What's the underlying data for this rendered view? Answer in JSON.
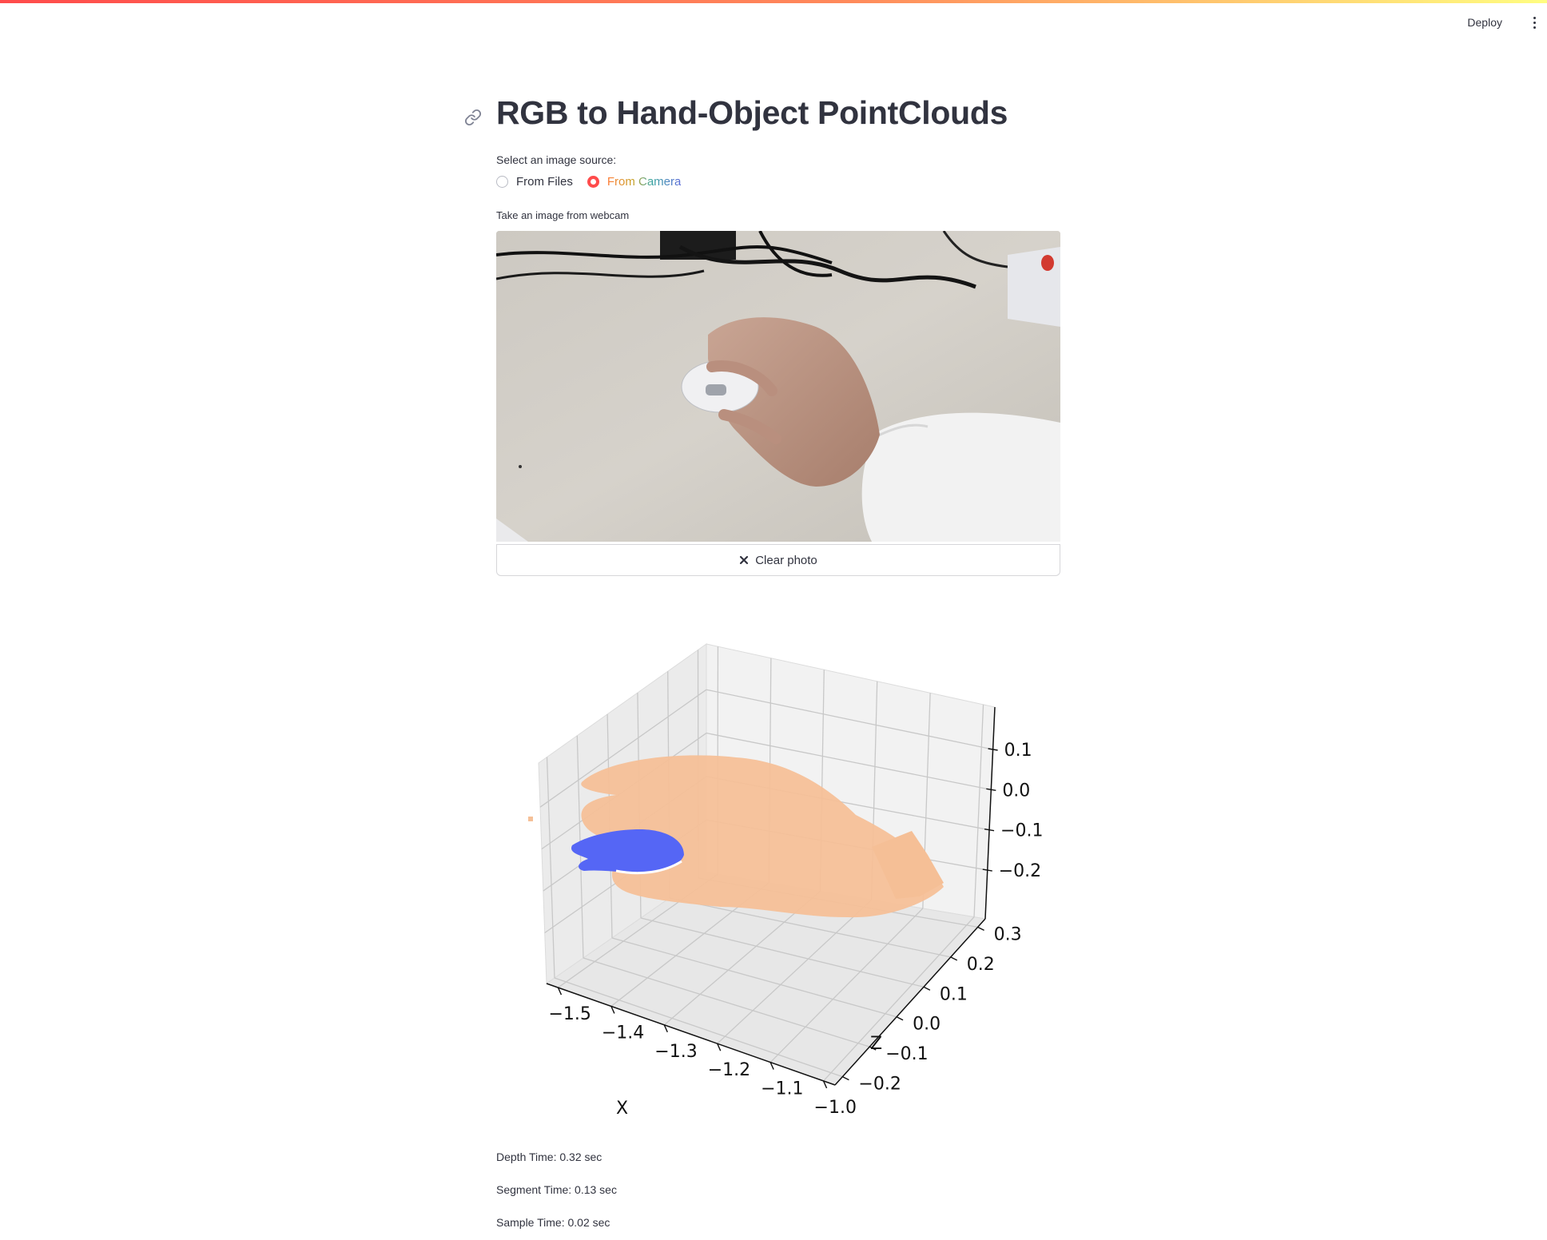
{
  "header": {
    "deploy_label": "Deploy"
  },
  "page": {
    "title": "RGB to Hand-Object PointClouds"
  },
  "source": {
    "label": "Select an image source:",
    "options": [
      {
        "label": "From Files",
        "checked": false
      },
      {
        "label": "From Camera",
        "checked": true
      }
    ]
  },
  "camera": {
    "label": "Take an image from webcam",
    "clear_label": "Clear photo"
  },
  "chart_data": {
    "type": "scatter",
    "projection": "3d",
    "xlabel": "X",
    "ylabel": "",
    "zlabel": "Z",
    "x_ticks": [
      "−1.5",
      "−1.4",
      "−1.3",
      "−1.2",
      "−1.1",
      "−1.0"
    ],
    "y_ticks": [
      "−0.2",
      "−0.1",
      "0.0",
      "0.1",
      "0.2",
      "0.3"
    ],
    "z_ticks": [
      "0.1",
      "0.0",
      "−0.1",
      "−0.2"
    ],
    "series": [
      {
        "color": "#f5c098",
        "description_cloud": "hand"
      },
      {
        "color": "#5566f5",
        "description_cloud": "object"
      }
    ],
    "grid": true
  },
  "stats": {
    "depth": "Depth Time: 0.32 sec",
    "segment": "Segment Time: 0.13 sec",
    "sample": "Sample Time: 0.02 sec"
  },
  "colors": {
    "accent": "#ff4b4b",
    "hand": "#f5c098",
    "object": "#5566f5"
  }
}
